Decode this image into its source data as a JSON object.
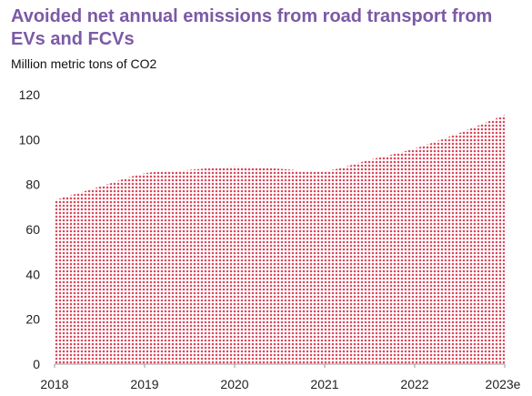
{
  "chart_data": {
    "type": "area",
    "title": "Avoided net annual emissions from road transport from EVs and FCVs",
    "ylabel": "Million metric tons of CO2",
    "xlabel": "",
    "x_tick_labels": [
      "2018",
      "2019",
      "2020",
      "2021",
      "2022",
      "2023e"
    ],
    "y_ticks": [
      0,
      20,
      40,
      60,
      80,
      100,
      120
    ],
    "ylim": [
      0,
      120
    ],
    "grid": false,
    "series": [
      {
        "x": [
          2018,
          2018.5,
          2019,
          2019.5,
          2020,
          2020.5,
          2021,
          2021.5,
          2022,
          2022.5,
          2023
        ],
        "values": [
          73,
          79,
          85,
          86.5,
          88,
          87,
          86,
          91,
          96,
          103,
          111
        ]
      }
    ],
    "colors": {
      "fill": "#d9475a",
      "title": "#7b5aa6",
      "axis": "#999999"
    }
  }
}
